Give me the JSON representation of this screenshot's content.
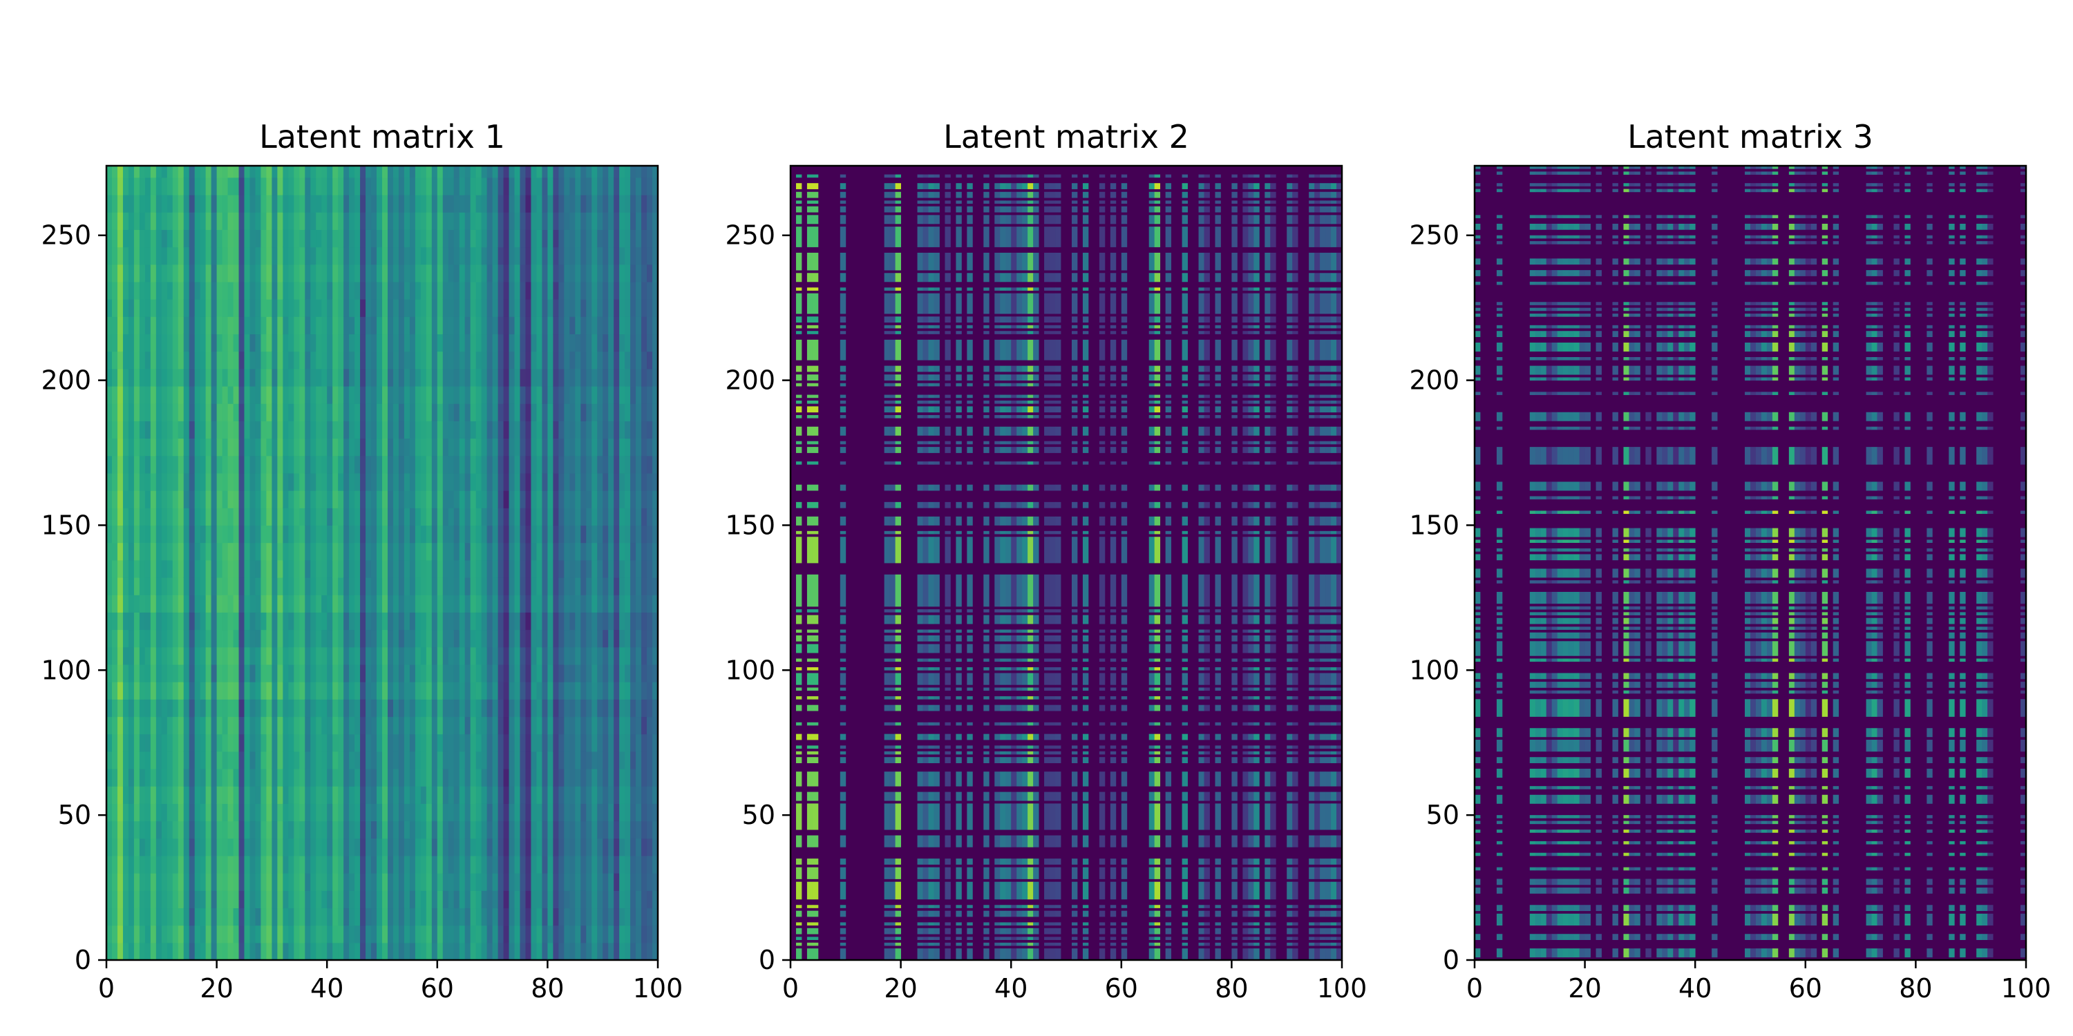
{
  "chart_data": [
    {
      "type": "heatmap",
      "title": "Latent matrix 1",
      "xlim": [
        0,
        100
      ],
      "ylim": [
        0,
        274
      ],
      "x_ticks": [
        "0",
        "20",
        "40",
        "60",
        "80",
        "100"
      ],
      "y_ticks": [
        "0",
        "50",
        "100",
        "150",
        "200",
        "250"
      ],
      "colormap": "viridis",
      "pattern": "dense",
      "grid": false,
      "legend": "none"
    },
    {
      "type": "heatmap",
      "title": "Latent matrix 2",
      "xlim": [
        0,
        100
      ],
      "ylim": [
        0,
        274
      ],
      "x_ticks": [
        "0",
        "20",
        "40",
        "60",
        "80",
        "100"
      ],
      "y_ticks": [
        "0",
        "50",
        "100",
        "150",
        "200",
        "250"
      ],
      "colormap": "viridis",
      "pattern": "sparse",
      "grid": false,
      "legend": "none"
    },
    {
      "type": "heatmap",
      "title": "Latent matrix 3",
      "xlim": [
        0,
        100
      ],
      "ylim": [
        0,
        274
      ],
      "x_ticks": [
        "0",
        "20",
        "40",
        "60",
        "80",
        "100"
      ],
      "y_ticks": [
        "0",
        "50",
        "100",
        "150",
        "200",
        "250"
      ],
      "colormap": "viridis",
      "pattern": "sparse-mid",
      "grid": false,
      "legend": "none"
    }
  ]
}
